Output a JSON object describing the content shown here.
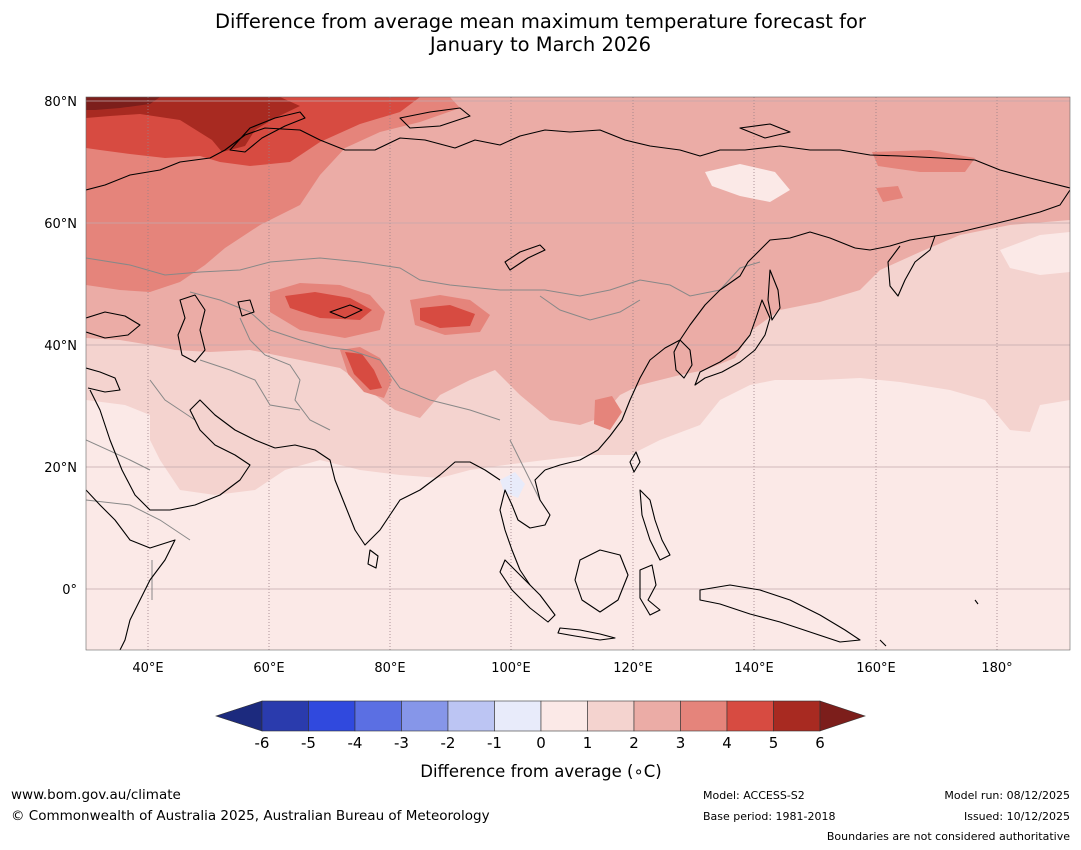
{
  "title": {
    "line1": "Difference from average mean maximum temperature forecast for",
    "line2": "January to March 2026"
  },
  "map": {
    "lat_labels": [
      "80°N",
      "60°N",
      "40°N",
      "20°N",
      "0°"
    ],
    "lon_labels": [
      "40°E",
      "60°E",
      "80°E",
      "100°E",
      "120°E",
      "140°E",
      "160°E",
      "180°"
    ],
    "extent": {
      "lon_min": 30,
      "lon_max": 192,
      "lat_min": -10,
      "lat_max": 80
    }
  },
  "legend": {
    "ticks": [
      "-6",
      "-5",
      "-4",
      "-3",
      "-2",
      "-1",
      "0",
      "1",
      "2",
      "3",
      "4",
      "5",
      "6"
    ],
    "colors": [
      "#1c2a7e",
      "#2a3bad",
      "#3049de",
      "#5b6fe3",
      "#8696e9",
      "#bcc5f3",
      "#e8ebfa",
      "#fbe9e7",
      "#f4d3cf",
      "#ebaca6",
      "#e5847b",
      "#d74b41",
      "#a82a21",
      "#7c1e1b"
    ],
    "label": "Difference from average (∘C)"
  },
  "footer": {
    "website": "www.bom.gov.au/climate",
    "copyright": "© Commonwealth of Australia 2025, Australian Bureau of Meteorology",
    "model": "Model: ACCESS-S2",
    "base_period": "Base period: 1981-2018",
    "model_run": "Model run: 08/12/2025",
    "issued": "Issued: 10/12/2025",
    "boundaries": "Boundaries are not considered authoritative"
  }
}
